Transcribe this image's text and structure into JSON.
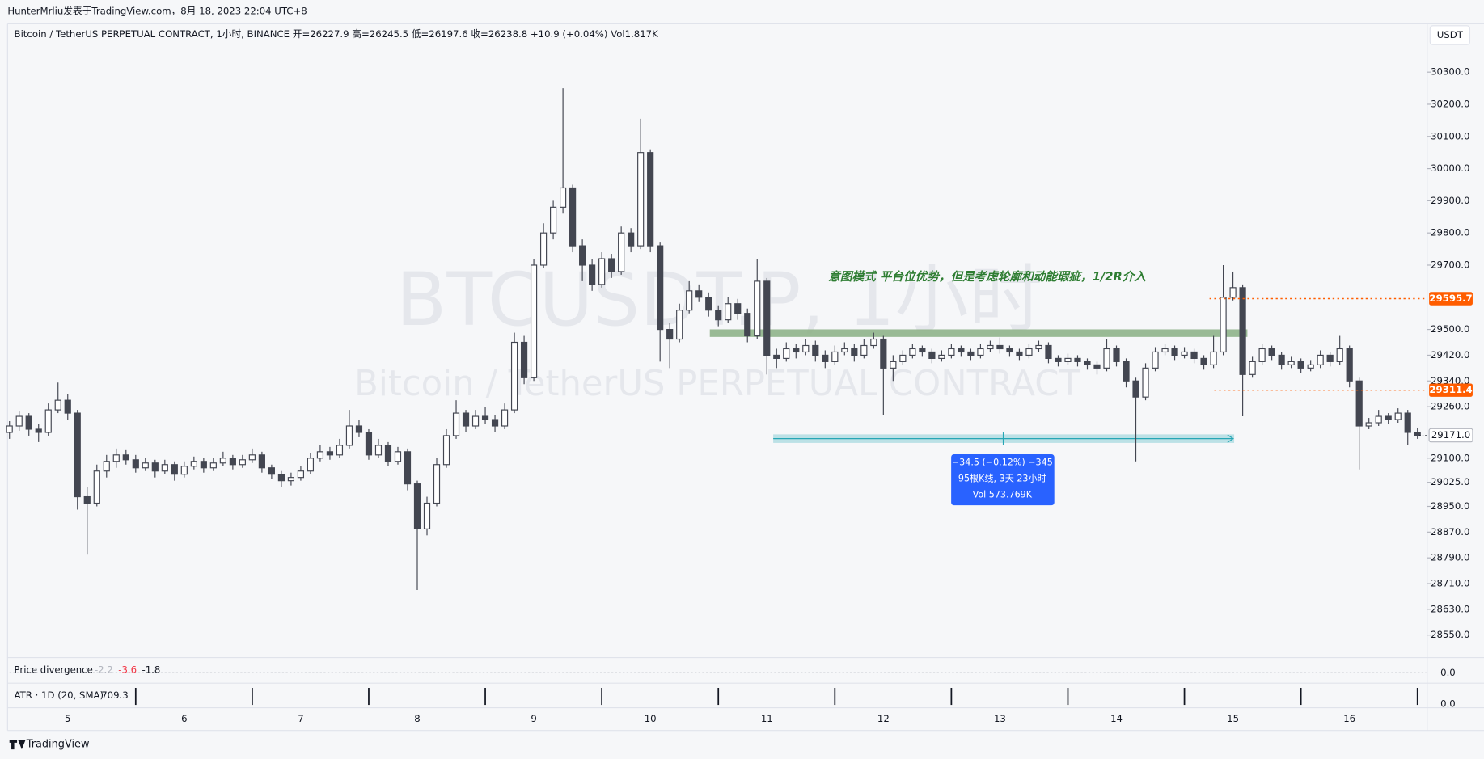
{
  "header": {
    "text": "HunterMrliu发表于TradingView.com，8月 18, 2023 22:04 UTC+8"
  },
  "legend": "Bitcoin / TetherUS PERPETUAL CONTRACT, 1小时, BINANCE  开=26227.9  高=26245.5  低=26197.6  收=26238.8  +10.9 (+0.04%)  Vol1.817K",
  "currency_button": "USDT",
  "watermark": {
    "symbol": "BTCUSDT.P, 1小时",
    "description": "Bitcoin / TetherUS PERPETUAL CONTRACT"
  },
  "footer": "TradingView",
  "chart_data": {
    "type": "candlestick",
    "annotation": "意图模式  平台位优势，但是考虑轮廓和动能瑕疵，1/2R介入",
    "measure": [
      "−34.5 (−0.12%) −345",
      "95根K线, 3天 23小时",
      "Vol 573.769K"
    ],
    "ylim": [
      28480,
      30450
    ],
    "yticks": [
      {
        "value": 30300,
        "label": "30300.0"
      },
      {
        "value": 30200,
        "label": "30200.0"
      },
      {
        "value": 30100,
        "label": "30100.0"
      },
      {
        "value": 30000,
        "label": "30000.0"
      },
      {
        "value": 29900,
        "label": "29900.0"
      },
      {
        "value": 29800,
        "label": "29800.0"
      },
      {
        "value": 29700,
        "label": "29700.0"
      },
      {
        "value": 29500,
        "label": "29500.0"
      },
      {
        "value": 29420,
        "label": "29420.0"
      },
      {
        "value": 29340,
        "label": "29340.0"
      },
      {
        "value": 29260,
        "label": "29260.0"
      },
      {
        "value": 29100,
        "label": "29100.0"
      },
      {
        "value": 29025,
        "label": "29025.0"
      },
      {
        "value": 28950,
        "label": "28950.0"
      },
      {
        "value": 28870,
        "label": "28870.0"
      },
      {
        "value": 28790,
        "label": "28790.0"
      },
      {
        "value": 28710,
        "label": "28710.0"
      },
      {
        "value": 28630,
        "label": "28630.0"
      },
      {
        "value": 28550,
        "label": "28550.0"
      }
    ],
    "price_lines": [
      29595.7,
      29311.4
    ],
    "last_price": {
      "value": 29171,
      "label": "29171.0"
    },
    "day_labels": [
      "5",
      "6",
      "7",
      "8",
      "9",
      "10",
      "11",
      "12",
      "13",
      "14",
      "15",
      "16"
    ],
    "up_color": "#ffffff",
    "down_color": "#434651",
    "line_color": "#ff5d00",
    "ohlc": [
      [
        29180,
        29215,
        29160,
        29200
      ],
      [
        29200,
        29245,
        29185,
        29230
      ],
      [
        29230,
        29240,
        29170,
        29190
      ],
      [
        29190,
        29205,
        29150,
        29180
      ],
      [
        29180,
        29270,
        29170,
        29250
      ],
      [
        29250,
        29335,
        29240,
        29280
      ],
      [
        29280,
        29300,
        29220,
        29240
      ],
      [
        29240,
        29250,
        28940,
        28980
      ],
      [
        28980,
        29010,
        28800,
        28960
      ],
      [
        28960,
        29080,
        28950,
        29060
      ],
      [
        29060,
        29110,
        29040,
        29090
      ],
      [
        29090,
        29130,
        29070,
        29110
      ],
      [
        29110,
        29125,
        29080,
        29095
      ],
      [
        29095,
        29110,
        29055,
        29070
      ],
      [
        29070,
        29100,
        29060,
        29085
      ],
      [
        29085,
        29095,
        29040,
        29060
      ],
      [
        29060,
        29095,
        29050,
        29080
      ],
      [
        29080,
        29090,
        29030,
        29050
      ],
      [
        29050,
        29090,
        29040,
        29075
      ],
      [
        29075,
        29105,
        29065,
        29090
      ],
      [
        29090,
        29100,
        29055,
        29070
      ],
      [
        29070,
        29100,
        29060,
        29085
      ],
      [
        29085,
        29120,
        29075,
        29100
      ],
      [
        29100,
        29110,
        29065,
        29080
      ],
      [
        29080,
        29110,
        29070,
        29095
      ],
      [
        29095,
        29130,
        29085,
        29110
      ],
      [
        29110,
        29120,
        29055,
        29070
      ],
      [
        29070,
        29080,
        29035,
        29050
      ],
      [
        29050,
        29060,
        29010,
        29030
      ],
      [
        29030,
        29055,
        29015,
        29040
      ],
      [
        29040,
        29075,
        29030,
        29060
      ],
      [
        29060,
        29115,
        29050,
        29100
      ],
      [
        29100,
        29140,
        29090,
        29120
      ],
      [
        29120,
        29135,
        29095,
        29110
      ],
      [
        29110,
        29160,
        29100,
        29140
      ],
      [
        29140,
        29250,
        29130,
        29200
      ],
      [
        29200,
        29220,
        29165,
        29180
      ],
      [
        29180,
        29190,
        29095,
        29110
      ],
      [
        29110,
        29160,
        29100,
        29140
      ],
      [
        29140,
        29150,
        29075,
        29090
      ],
      [
        29090,
        29135,
        29080,
        29120
      ],
      [
        29120,
        29130,
        29000,
        29020
      ],
      [
        29020,
        29030,
        28690,
        28880
      ],
      [
        28880,
        28980,
        28860,
        28960
      ],
      [
        28960,
        29100,
        28950,
        29080
      ],
      [
        29080,
        29190,
        29070,
        29170
      ],
      [
        29170,
        29280,
        29160,
        29240
      ],
      [
        29240,
        29250,
        29180,
        29200
      ],
      [
        29200,
        29250,
        29190,
        29230
      ],
      [
        29230,
        29260,
        29205,
        29220
      ],
      [
        29220,
        29235,
        29180,
        29200
      ],
      [
        29200,
        29270,
        29190,
        29250
      ],
      [
        29250,
        29490,
        29240,
        29460
      ],
      [
        29460,
        29480,
        29330,
        29350
      ],
      [
        29350,
        29720,
        29340,
        29700
      ],
      [
        29700,
        29830,
        29690,
        29800
      ],
      [
        29800,
        29900,
        29780,
        29880
      ],
      [
        29880,
        30250,
        29860,
        29940
      ],
      [
        29940,
        29950,
        29740,
        29760
      ],
      [
        29760,
        29780,
        29650,
        29700
      ],
      [
        29700,
        29720,
        29620,
        29640
      ],
      [
        29640,
        29740,
        29630,
        29720
      ],
      [
        29720,
        29735,
        29660,
        29680
      ],
      [
        29680,
        29820,
        29670,
        29800
      ],
      [
        29800,
        29815,
        29740,
        29760
      ],
      [
        29760,
        30155,
        29750,
        30050
      ],
      [
        30050,
        30060,
        29740,
        29760
      ],
      [
        29760,
        29770,
        29400,
        29500
      ],
      [
        29500,
        29520,
        29380,
        29470
      ],
      [
        29470,
        29580,
        29460,
        29560
      ],
      [
        29560,
        29650,
        29550,
        29620
      ],
      [
        29620,
        29640,
        29585,
        29600
      ],
      [
        29600,
        29615,
        29540,
        29560
      ],
      [
        29560,
        29575,
        29510,
        29530
      ],
      [
        29530,
        29600,
        29520,
        29580
      ],
      [
        29580,
        29595,
        29530,
        29550
      ],
      [
        29550,
        29565,
        29460,
        29480
      ],
      [
        29480,
        29720,
        29470,
        29650
      ],
      [
        29650,
        29660,
        29360,
        29420
      ],
      [
        29420,
        29440,
        29380,
        29410
      ],
      [
        29410,
        29460,
        29400,
        29440
      ],
      [
        29440,
        29455,
        29410,
        29430
      ],
      [
        29430,
        29470,
        29420,
        29450
      ],
      [
        29450,
        29465,
        29400,
        29420
      ],
      [
        29420,
        29435,
        29380,
        29400
      ],
      [
        29400,
        29450,
        29390,
        29430
      ],
      [
        29430,
        29460,
        29420,
        29440
      ],
      [
        29440,
        29455,
        29400,
        29420
      ],
      [
        29420,
        29470,
        29410,
        29450
      ],
      [
        29450,
        29490,
        29440,
        29470
      ],
      [
        29470,
        29480,
        29235,
        29380
      ],
      [
        29380,
        29420,
        29340,
        29400
      ],
      [
        29400,
        29435,
        29390,
        29420
      ],
      [
        29420,
        29455,
        29410,
        29440
      ],
      [
        29440,
        29450,
        29415,
        29430
      ],
      [
        29430,
        29440,
        29395,
        29410
      ],
      [
        29410,
        29435,
        29400,
        29420
      ],
      [
        29420,
        29455,
        29410,
        29440
      ],
      [
        29440,
        29450,
        29415,
        29430
      ],
      [
        29430,
        29440,
        29405,
        29420
      ],
      [
        29420,
        29455,
        29410,
        29440
      ],
      [
        29440,
        29465,
        29430,
        29450
      ],
      [
        29450,
        29475,
        29425,
        29440
      ],
      [
        29440,
        29450,
        29415,
        29430
      ],
      [
        29430,
        29440,
        29405,
        29420
      ],
      [
        29420,
        29455,
        29410,
        29440
      ],
      [
        29440,
        29465,
        29430,
        29450
      ],
      [
        29450,
        29460,
        29395,
        29410
      ],
      [
        29410,
        29420,
        29385,
        29400
      ],
      [
        29400,
        29425,
        29390,
        29410
      ],
      [
        29410,
        29420,
        29385,
        29400
      ],
      [
        29400,
        29410,
        29375,
        29390
      ],
      [
        29390,
        29400,
        29360,
        29380
      ],
      [
        29380,
        29470,
        29370,
        29440
      ],
      [
        29440,
        29450,
        29385,
        29400
      ],
      [
        29400,
        29410,
        29320,
        29340
      ],
      [
        29340,
        29350,
        29090,
        29290
      ],
      [
        29290,
        29395,
        29280,
        29380
      ],
      [
        29380,
        29445,
        29370,
        29430
      ],
      [
        29430,
        29455,
        29420,
        29440
      ],
      [
        29440,
        29450,
        29405,
        29420
      ],
      [
        29420,
        29445,
        29410,
        29430
      ],
      [
        29430,
        29440,
        29395,
        29410
      ],
      [
        29410,
        29420,
        29375,
        29390
      ],
      [
        29390,
        29480,
        29380,
        29430
      ],
      [
        29430,
        29700,
        29420,
        29600
      ],
      [
        29600,
        29680,
        29590,
        29630
      ],
      [
        29630,
        29640,
        29230,
        29360
      ],
      [
        29360,
        29415,
        29350,
        29400
      ],
      [
        29400,
        29455,
        29390,
        29440
      ],
      [
        29440,
        29450,
        29405,
        29420
      ],
      [
        29420,
        29430,
        29375,
        29390
      ],
      [
        29390,
        29415,
        29380,
        29400
      ],
      [
        29400,
        29410,
        29365,
        29380
      ],
      [
        29380,
        29405,
        29370,
        29390
      ],
      [
        29390,
        29435,
        29380,
        29420
      ],
      [
        29420,
        29430,
        29385,
        29400
      ],
      [
        29400,
        29480,
        29390,
        29440
      ],
      [
        29440,
        29450,
        29320,
        29340
      ],
      [
        29340,
        29350,
        29065,
        29200
      ],
      [
        29200,
        29225,
        29190,
        29210
      ],
      [
        29210,
        29250,
        29200,
        29230
      ],
      [
        29230,
        29240,
        29205,
        29220
      ],
      [
        29220,
        29255,
        29210,
        29240
      ],
      [
        29240,
        29250,
        29140,
        29180
      ],
      [
        29180,
        29195,
        29160,
        29171
      ]
    ],
    "indicators": [
      {
        "name": "Price divergence",
        "values": [
          "-2.2",
          "-3.6",
          "-1.8"
        ],
        "axis_label": "0.0"
      },
      {
        "name": "ATR · 1D (20, SMA)",
        "values": [
          "709.3"
        ],
        "axis_label": "0.0"
      }
    ]
  }
}
